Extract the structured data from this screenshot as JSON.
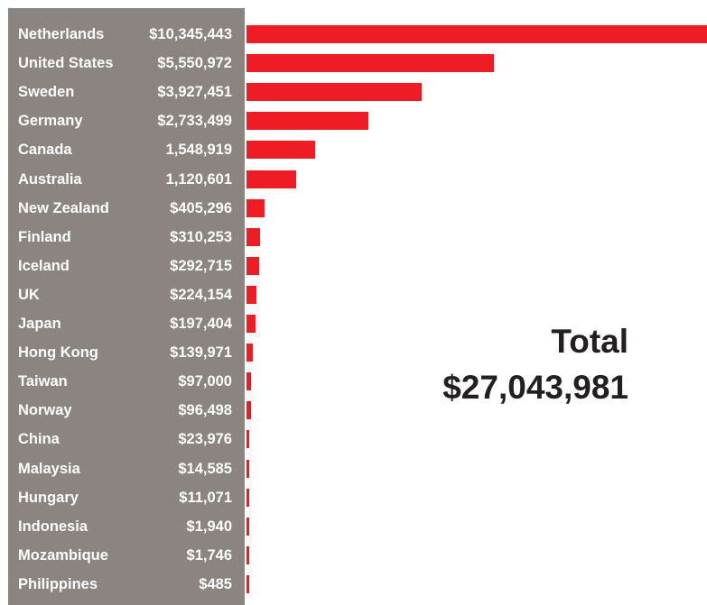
{
  "chart_data": {
    "type": "bar",
    "orientation": "horizontal",
    "categories": [
      "Netherlands",
      "United States",
      "Sweden",
      "Germany",
      "Canada",
      "Australia",
      "New Zealand",
      "Finland",
      "Iceland",
      "UK",
      "Japan",
      "Hong Kong",
      "Taiwan",
      "Norway",
      "China",
      "Malaysia",
      "Hungary",
      "Indonesia",
      "Mozambique",
      "Philippines"
    ],
    "values": [
      10345443,
      5550972,
      3927451,
      2733499,
      1548919,
      1120601,
      405296,
      310253,
      292715,
      224154,
      197404,
      139971,
      97000,
      96498,
      23976,
      14585,
      11071,
      1940,
      1746,
      485
    ],
    "value_labels": [
      "$10,345,443",
      "$5,550,972",
      "$3,927,451",
      "$2,733,499",
      "1,548,919",
      "1,120,601",
      "$405,296",
      "$310,253",
      "$292,715",
      "$224,154",
      "$197,404",
      "$139,971",
      "$97,000",
      "$96,498",
      "$23,976",
      "$14,585",
      "$11,071",
      "$1,940",
      "$1,746",
      "$485"
    ],
    "total_label": "Total",
    "total_value": "$27,043,981",
    "bar_color": "#ee1c25",
    "label_panel_color": "#8b8480"
  }
}
